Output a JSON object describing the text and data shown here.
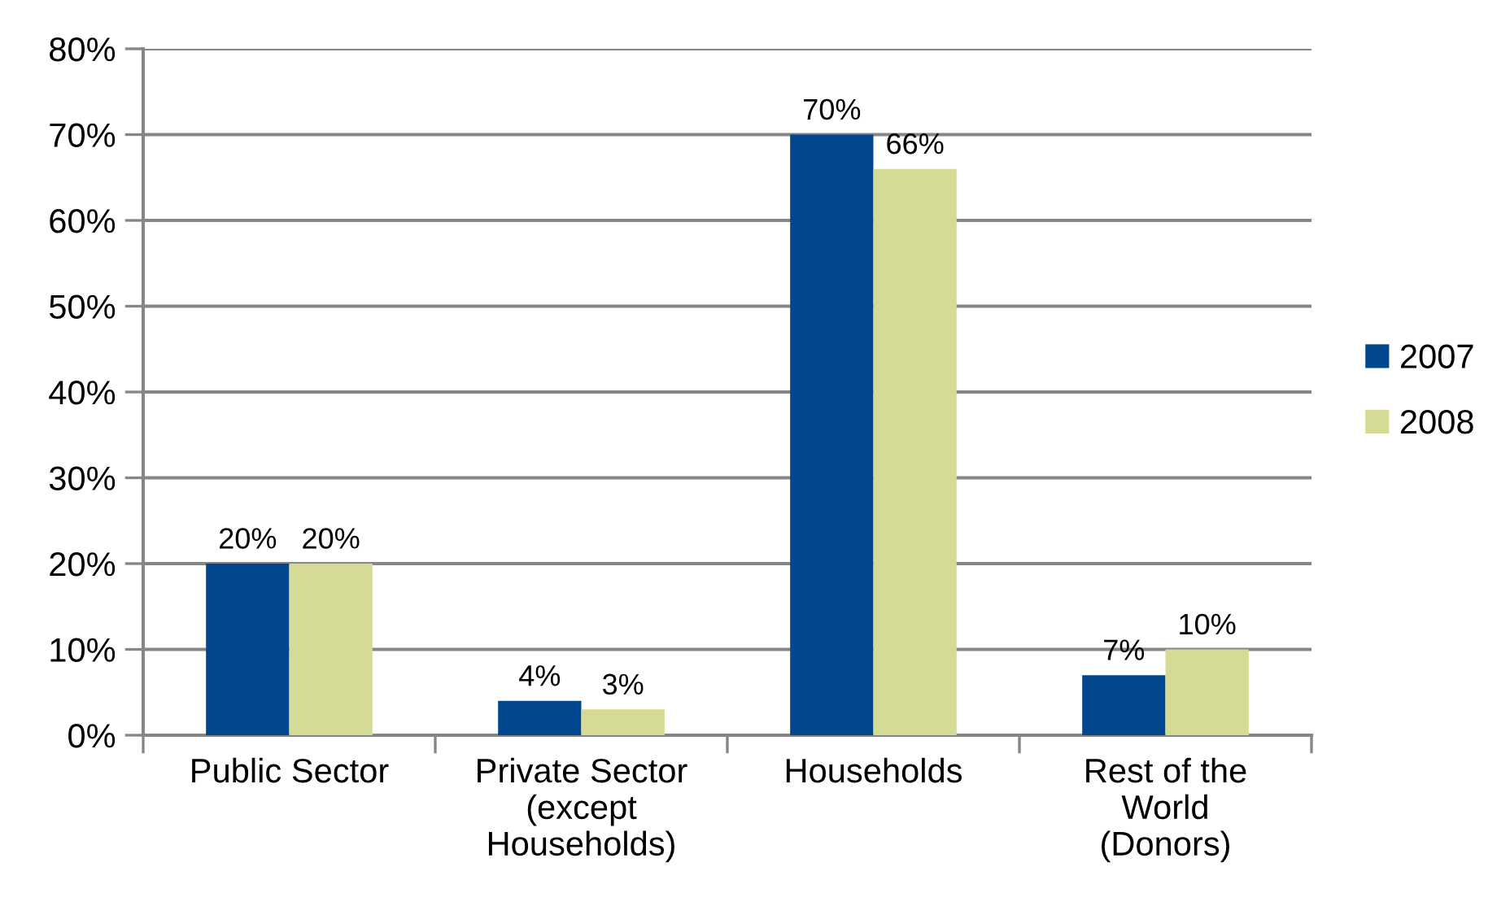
{
  "chart_data": {
    "type": "bar",
    "categories": [
      "Public Sector",
      "Private Sector\n(except\nHouseholds)",
      "Households",
      "Rest of the\nWorld\n(Donors)"
    ],
    "series": [
      {
        "name": "2007",
        "color": "#00478d",
        "values": [
          20,
          4,
          70,
          7
        ],
        "value_labels": [
          "20%",
          "4%",
          "70%",
          "7%"
        ]
      },
      {
        "name": "2008",
        "color": "#d5db94",
        "values": [
          20,
          3,
          66,
          10
        ],
        "value_labels": [
          "20%",
          "3%",
          "66%",
          "10%"
        ]
      }
    ],
    "ylim": [
      0,
      80
    ],
    "yticks": [
      {
        "value": 0,
        "label": "0%"
      },
      {
        "value": 10,
        "label": "10%"
      },
      {
        "value": 20,
        "label": "20%"
      },
      {
        "value": 30,
        "label": "30%"
      },
      {
        "value": 40,
        "label": "40%"
      },
      {
        "value": 50,
        "label": "50%"
      },
      {
        "value": 60,
        "label": "60%"
      },
      {
        "value": 70,
        "label": "70%"
      },
      {
        "value": 80,
        "label": "80%"
      }
    ],
    "grid": "y",
    "legend": "right"
  }
}
